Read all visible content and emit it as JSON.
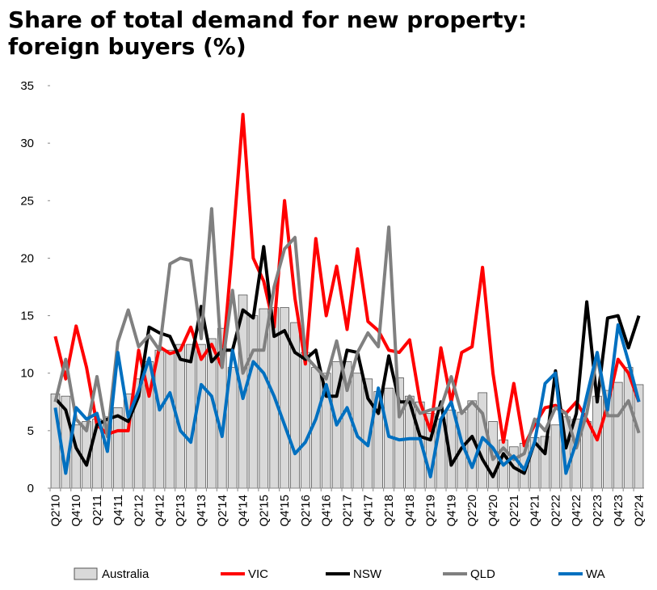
{
  "chart_data": {
    "type": "bar",
    "title": "Share of total demand for new property: foreign buyers (%)",
    "categories": [
      "Q2'10",
      null,
      "Q4'10",
      null,
      "Q2'11",
      null,
      "Q4'11",
      null,
      "Q2'12",
      null,
      "Q4'12",
      null,
      "Q2'13",
      null,
      "Q4'13",
      null,
      "Q2'14",
      null,
      "Q4'14",
      null,
      "Q2'15",
      null,
      "Q4'15",
      null,
      "Q2'16",
      null,
      "Q4'16",
      null,
      "Q2'17",
      null,
      "Q4'17",
      null,
      "Q2'18",
      null,
      "Q4'18",
      null,
      "Q2'19",
      null,
      "Q4'19",
      null,
      "Q2'20",
      null,
      "Q4'20",
      null,
      "Q2'21",
      null,
      "Q4'21",
      null,
      "Q2'22",
      null,
      "Q4'22",
      null,
      "Q2'23",
      null,
      "Q4'23",
      null,
      "Q2'24"
    ],
    "series": [
      {
        "name": "Australia",
        "type": "bar",
        "color": "#d9d9d9",
        "values": [
          8.2,
          8,
          5.5,
          5.8,
          6,
          6.2,
          7,
          8.2,
          9.5,
          11,
          12,
          12,
          12.5,
          12.5,
          12.5,
          13,
          13.9,
          10.5,
          16.8,
          15,
          15.6,
          15.7,
          15.7,
          14.4,
          11.8,
          10.5,
          10,
          11,
          11,
          10,
          9.5,
          8.4,
          8.7,
          9.6,
          8,
          7.5,
          6.5,
          6,
          6.8,
          6.6,
          7.6,
          8.3,
          5.8,
          4.2,
          3.6,
          3.9,
          4.4,
          4.5,
          5.5,
          6.2,
          6,
          5.8,
          8,
          8.5,
          9.2,
          10.5,
          9
        ]
      },
      {
        "name": "VIC",
        "type": "line",
        "color": "#ff0000",
        "values": [
          13.2,
          9.5,
          14.1,
          10.5,
          5.5,
          4.7,
          5,
          5,
          12,
          8,
          12.3,
          11.7,
          12,
          14,
          11.2,
          12.5,
          10.5,
          21,
          32.5,
          20,
          18,
          14,
          25,
          16.5,
          10.8,
          21.7,
          15,
          19.3,
          13.8,
          20.8,
          14.5,
          13.7,
          12,
          11.8,
          12.9,
          7.5,
          5,
          12.2,
          7.5,
          11.8,
          12.3,
          19.2,
          10,
          4,
          9.1,
          3.7,
          5.5,
          7,
          7.2,
          6.5,
          7.5,
          6,
          4.2,
          7.2,
          11.2,
          10,
          7.5
        ]
      },
      {
        "name": "NSW",
        "type": "line",
        "color": "#000000",
        "values": [
          7.8,
          6.8,
          3.5,
          2,
          5.5,
          6,
          6.3,
          5.8,
          8,
          14,
          13.5,
          13.2,
          11.2,
          11,
          15.8,
          11,
          12,
          12,
          15.5,
          14.8,
          21,
          13.2,
          13.7,
          11.8,
          11.2,
          12,
          8,
          8,
          12,
          11.8,
          7.8,
          6.5,
          11.5,
          7.5,
          7.5,
          4.5,
          4.2,
          7.5,
          2,
          3.5,
          4.5,
          2.5,
          1,
          3,
          1.8,
          1.3,
          4,
          3,
          10.2,
          3.5,
          6.5,
          16.2,
          7.5,
          14.8,
          15,
          12.2,
          15
        ]
      },
      {
        "name": "QLD",
        "type": "line",
        "color": "#808080",
        "values": [
          7.5,
          11.2,
          6,
          5,
          9.7,
          4.5,
          12.7,
          15.5,
          12.3,
          13.3,
          12,
          19.5,
          20,
          19.8,
          13,
          24.3,
          10.5,
          17.2,
          10,
          12,
          12,
          17.5,
          20.8,
          21.8,
          11.5,
          10.5,
          9.5,
          12.8,
          8.5,
          11.8,
          13.5,
          12.3,
          22.7,
          6.2,
          8,
          6.5,
          6.8,
          7,
          9.7,
          6.5,
          7.5,
          6.5,
          2.5,
          3.5,
          2.5,
          3,
          6,
          5,
          7,
          6.5,
          3.5,
          6.5,
          11.5,
          6.3,
          6.3,
          7.6,
          4.8
        ]
      },
      {
        "name": "WA",
        "type": "line",
        "color": "#0070c0",
        "values": [
          7,
          1.3,
          7,
          6,
          6.5,
          3.2,
          11.8,
          6.2,
          8.5,
          11.3,
          6.8,
          8.3,
          5,
          4,
          9,
          8,
          4.5,
          12,
          7.8,
          11,
          10,
          8,
          5.5,
          3,
          4,
          6,
          9,
          5.5,
          7,
          4.5,
          3.7,
          8.7,
          4.5,
          4.2,
          4.3,
          4.3,
          1,
          6,
          7.5,
          4,
          1.8,
          4.4,
          3.5,
          2,
          2.8,
          1.6,
          4,
          9.1,
          10,
          1.3,
          4,
          8,
          11.8,
          6.8,
          14.2,
          11,
          7.5
        ]
      }
    ],
    "ylim": [
      0,
      35
    ],
    "yticks": [
      0,
      5,
      10,
      15,
      20,
      25,
      30,
      35
    ],
    "grid": false
  }
}
